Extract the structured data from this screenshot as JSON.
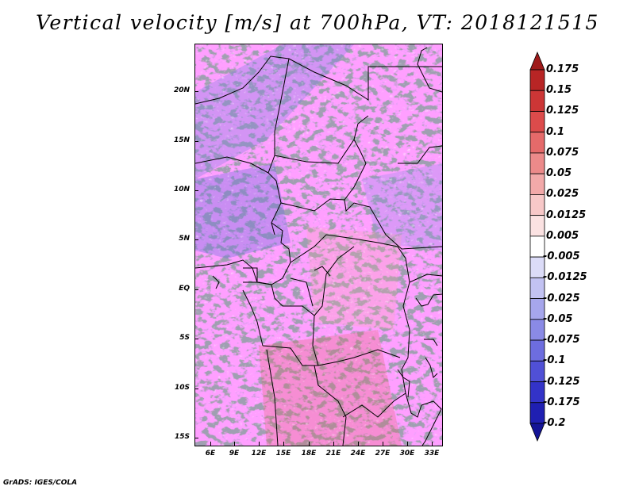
{
  "title": "Vertical velocity [m/s] at 700hPa, VT: 2018121515",
  "footer": "GrADS: IGES/COLA",
  "map": {
    "lat_range": [
      -16,
      24.5
    ],
    "lon_range": [
      3.6,
      34
    ],
    "lat_ticks": [
      "20N",
      "15N",
      "10N",
      "5N",
      "EQ",
      "5S",
      "10S",
      "15S"
    ],
    "lon_ticks": [
      "6E",
      "9E",
      "12E",
      "15E",
      "18E",
      "21E",
      "24E",
      "27E",
      "30E",
      "33E"
    ],
    "field": "vertical velocity",
    "level": "700hPa",
    "units": "m/s"
  },
  "colorbar": {
    "labels": [
      "0.175",
      "0.15",
      "0.125",
      "0.1",
      "0.075",
      "0.05",
      "0.025",
      "0.0125",
      "0.005",
      "-0.005",
      "-0.0125",
      "-0.025",
      "-0.05",
      "-0.075",
      "-0.1",
      "-0.125",
      "-0.175",
      "-0.2"
    ],
    "colors": [
      "#9e1a1a",
      "#b82525",
      "#cc3636",
      "#dc4b4b",
      "#e56a6a",
      "#ec8a8a",
      "#f2a9a9",
      "#f7c8c8",
      "#fbe2e2",
      "#ffffff",
      "#dcdcf8",
      "#c2c2f2",
      "#a6a6ec",
      "#8a8ae6",
      "#6d6ddf",
      "#5050d6",
      "#3333c8",
      "#1f1fb2",
      "#141496"
    ]
  }
}
